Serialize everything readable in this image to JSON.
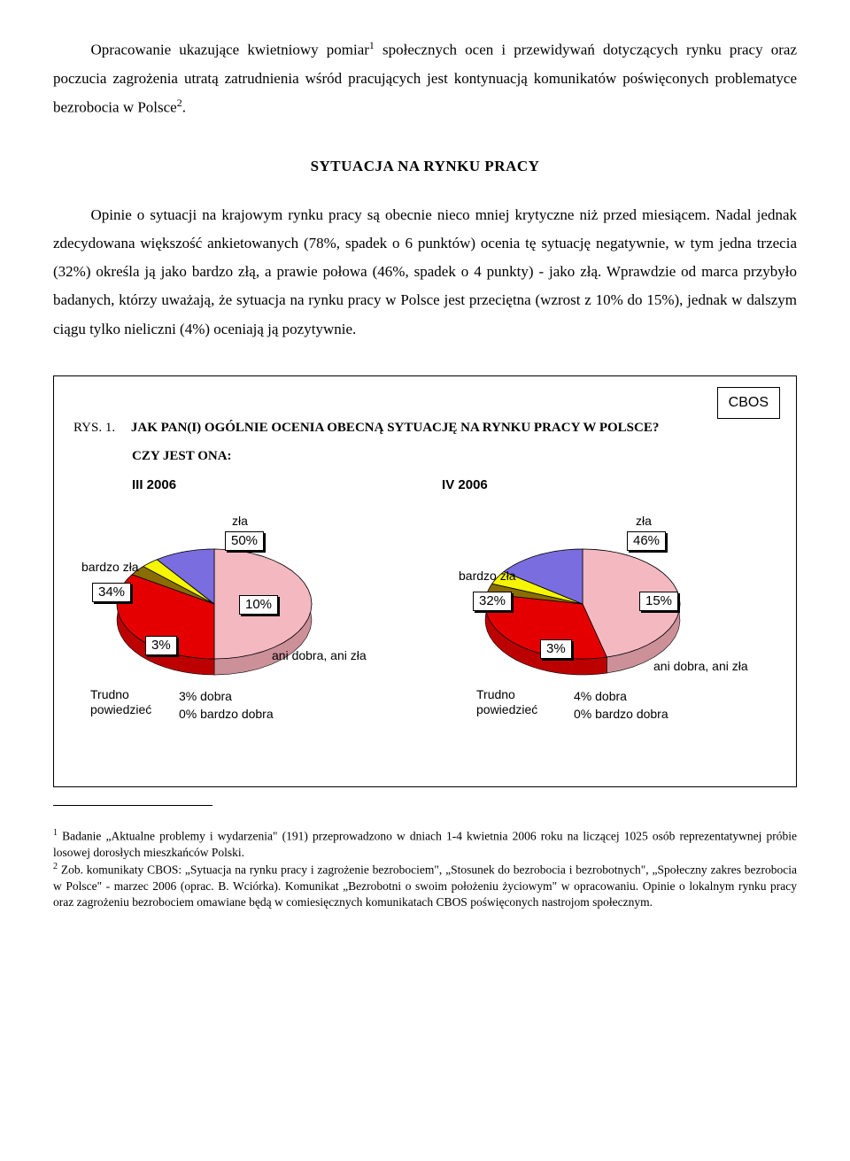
{
  "intro": {
    "p1_a": "Opracowanie ukazujące kwietniowy pomiar",
    "p1_b": " społecznych ocen i przewidywań dotyczących rynku pracy oraz poczucia zagrożenia utratą zatrudnienia wśród pracujących jest kontynuacją komunikatów poświęconych problematyce bezrobocia w Polsce",
    "p1_c": "."
  },
  "heading": "SYTUACJA NA RYNKU PRACY",
  "body": {
    "p2": "Opinie o sytuacji na krajowym rynku pracy są obecnie nieco mniej krytyczne niż przed miesiącem. Nadal jednak zdecydowana większość ankietowanych (78%, spadek o 6 punktów) ocenia tę sytuację negatywnie, w tym jedna trzecia (32%) określa ją jako bardzo złą, a prawie połowa (46%, spadek o 4 punkty) - jako złą. Wprawdzie od marca przybyło badanych, którzy uważają, że sytuacja na rynku pracy w Polsce jest przeciętna (wzrost z 10% do 15%), jednak w dalszym ciągu tylko nieliczni (4%) oceniają ją pozytywnie."
  },
  "figure": {
    "cbos": "CBOS",
    "rys": "RYS. 1.",
    "title": "JAK PAN(I) OGÓLNIE OCENIA OBECNĄ SYTUACJĘ NA RYNKU PRACY W POLSCE?",
    "sub": "CZY JEST ONA:",
    "period_left": "III 2006",
    "period_right": "IV 2006",
    "labels": {
      "zla": "zła",
      "bardzo_zla": "bardzo zła",
      "ani": "ani dobra, ani zła",
      "dobra": "dobra",
      "bardzo_dobra": "bardzo dobra",
      "trudno": "Trudno\npowiedzieć"
    },
    "colors": {
      "zla": "#f4b8c1",
      "bardzo_zla": "#e40000",
      "trudno": "#8a6d00",
      "dobra": "#f6f600",
      "bardzo_dobra": "#2fcc2f",
      "ani": "#7a6de0",
      "stroke": "#000000",
      "side": "#777777"
    },
    "left": {
      "type": "pie3d",
      "slices": [
        {
          "label": "zła",
          "value": 50,
          "color": "#f4b8c1"
        },
        {
          "label": "bardzo zła",
          "value": 34,
          "color": "#e40000"
        },
        {
          "label": "Trudno powiedzieć",
          "value": 3,
          "color": "#8a6d00"
        },
        {
          "label": "dobra",
          "value": 3,
          "color": "#f6f600"
        },
        {
          "label": "bardzo dobra",
          "value": 0,
          "color": "#2fcc2f"
        },
        {
          "label": "ani dobra, ani zła",
          "value": 10,
          "color": "#7a6de0"
        }
      ],
      "pct": {
        "zla": "50%",
        "bzla": "34%",
        "tp": "3%",
        "dob": "3%",
        "bdob": "0%",
        "ani": "10%"
      }
    },
    "right": {
      "type": "pie3d",
      "slices": [
        {
          "label": "zła",
          "value": 46,
          "color": "#f4b8c1"
        },
        {
          "label": "bardzo zła",
          "value": 32,
          "color": "#e40000"
        },
        {
          "label": "Trudno powiedzieć",
          "value": 3,
          "color": "#8a6d00"
        },
        {
          "label": "dobra",
          "value": 4,
          "color": "#f6f600"
        },
        {
          "label": "bardzo dobra",
          "value": 0,
          "color": "#2fcc2f"
        },
        {
          "label": "ani dobra, ani zła",
          "value": 15,
          "color": "#7a6de0"
        }
      ],
      "pct": {
        "zla": "46%",
        "bzla": "32%",
        "tp": "3%",
        "dob": "4%",
        "bdob": "0%",
        "ani": "15%"
      }
    }
  },
  "footnotes": {
    "f1": " Badanie „Aktualne problemy i wydarzenia\" (191) przeprowadzono w dniach 1-4 kwietnia 2006 roku na liczącej 1025 osób reprezentatywnej próbie losowej dorosłych mieszkańców Polski.",
    "f2": " Zob. komunikaty CBOS: „Sytuacja na rynku pracy i zagrożenie bezrobociem\", „Stosunek do bezrobocia i bezrobotnych\", „Społeczny zakres bezrobocia w Polsce\" - marzec 2006 (oprac. B. Wciórka). Komunikat „Bezrobotni o swoim położeniu życiowym\" w opracowaniu. Opinie o lokalnym rynku pracy oraz zagrożeniu bezrobociem omawiane będą w comiesięcznych komunikatach CBOS poświęconych nastrojom społecznym."
  }
}
